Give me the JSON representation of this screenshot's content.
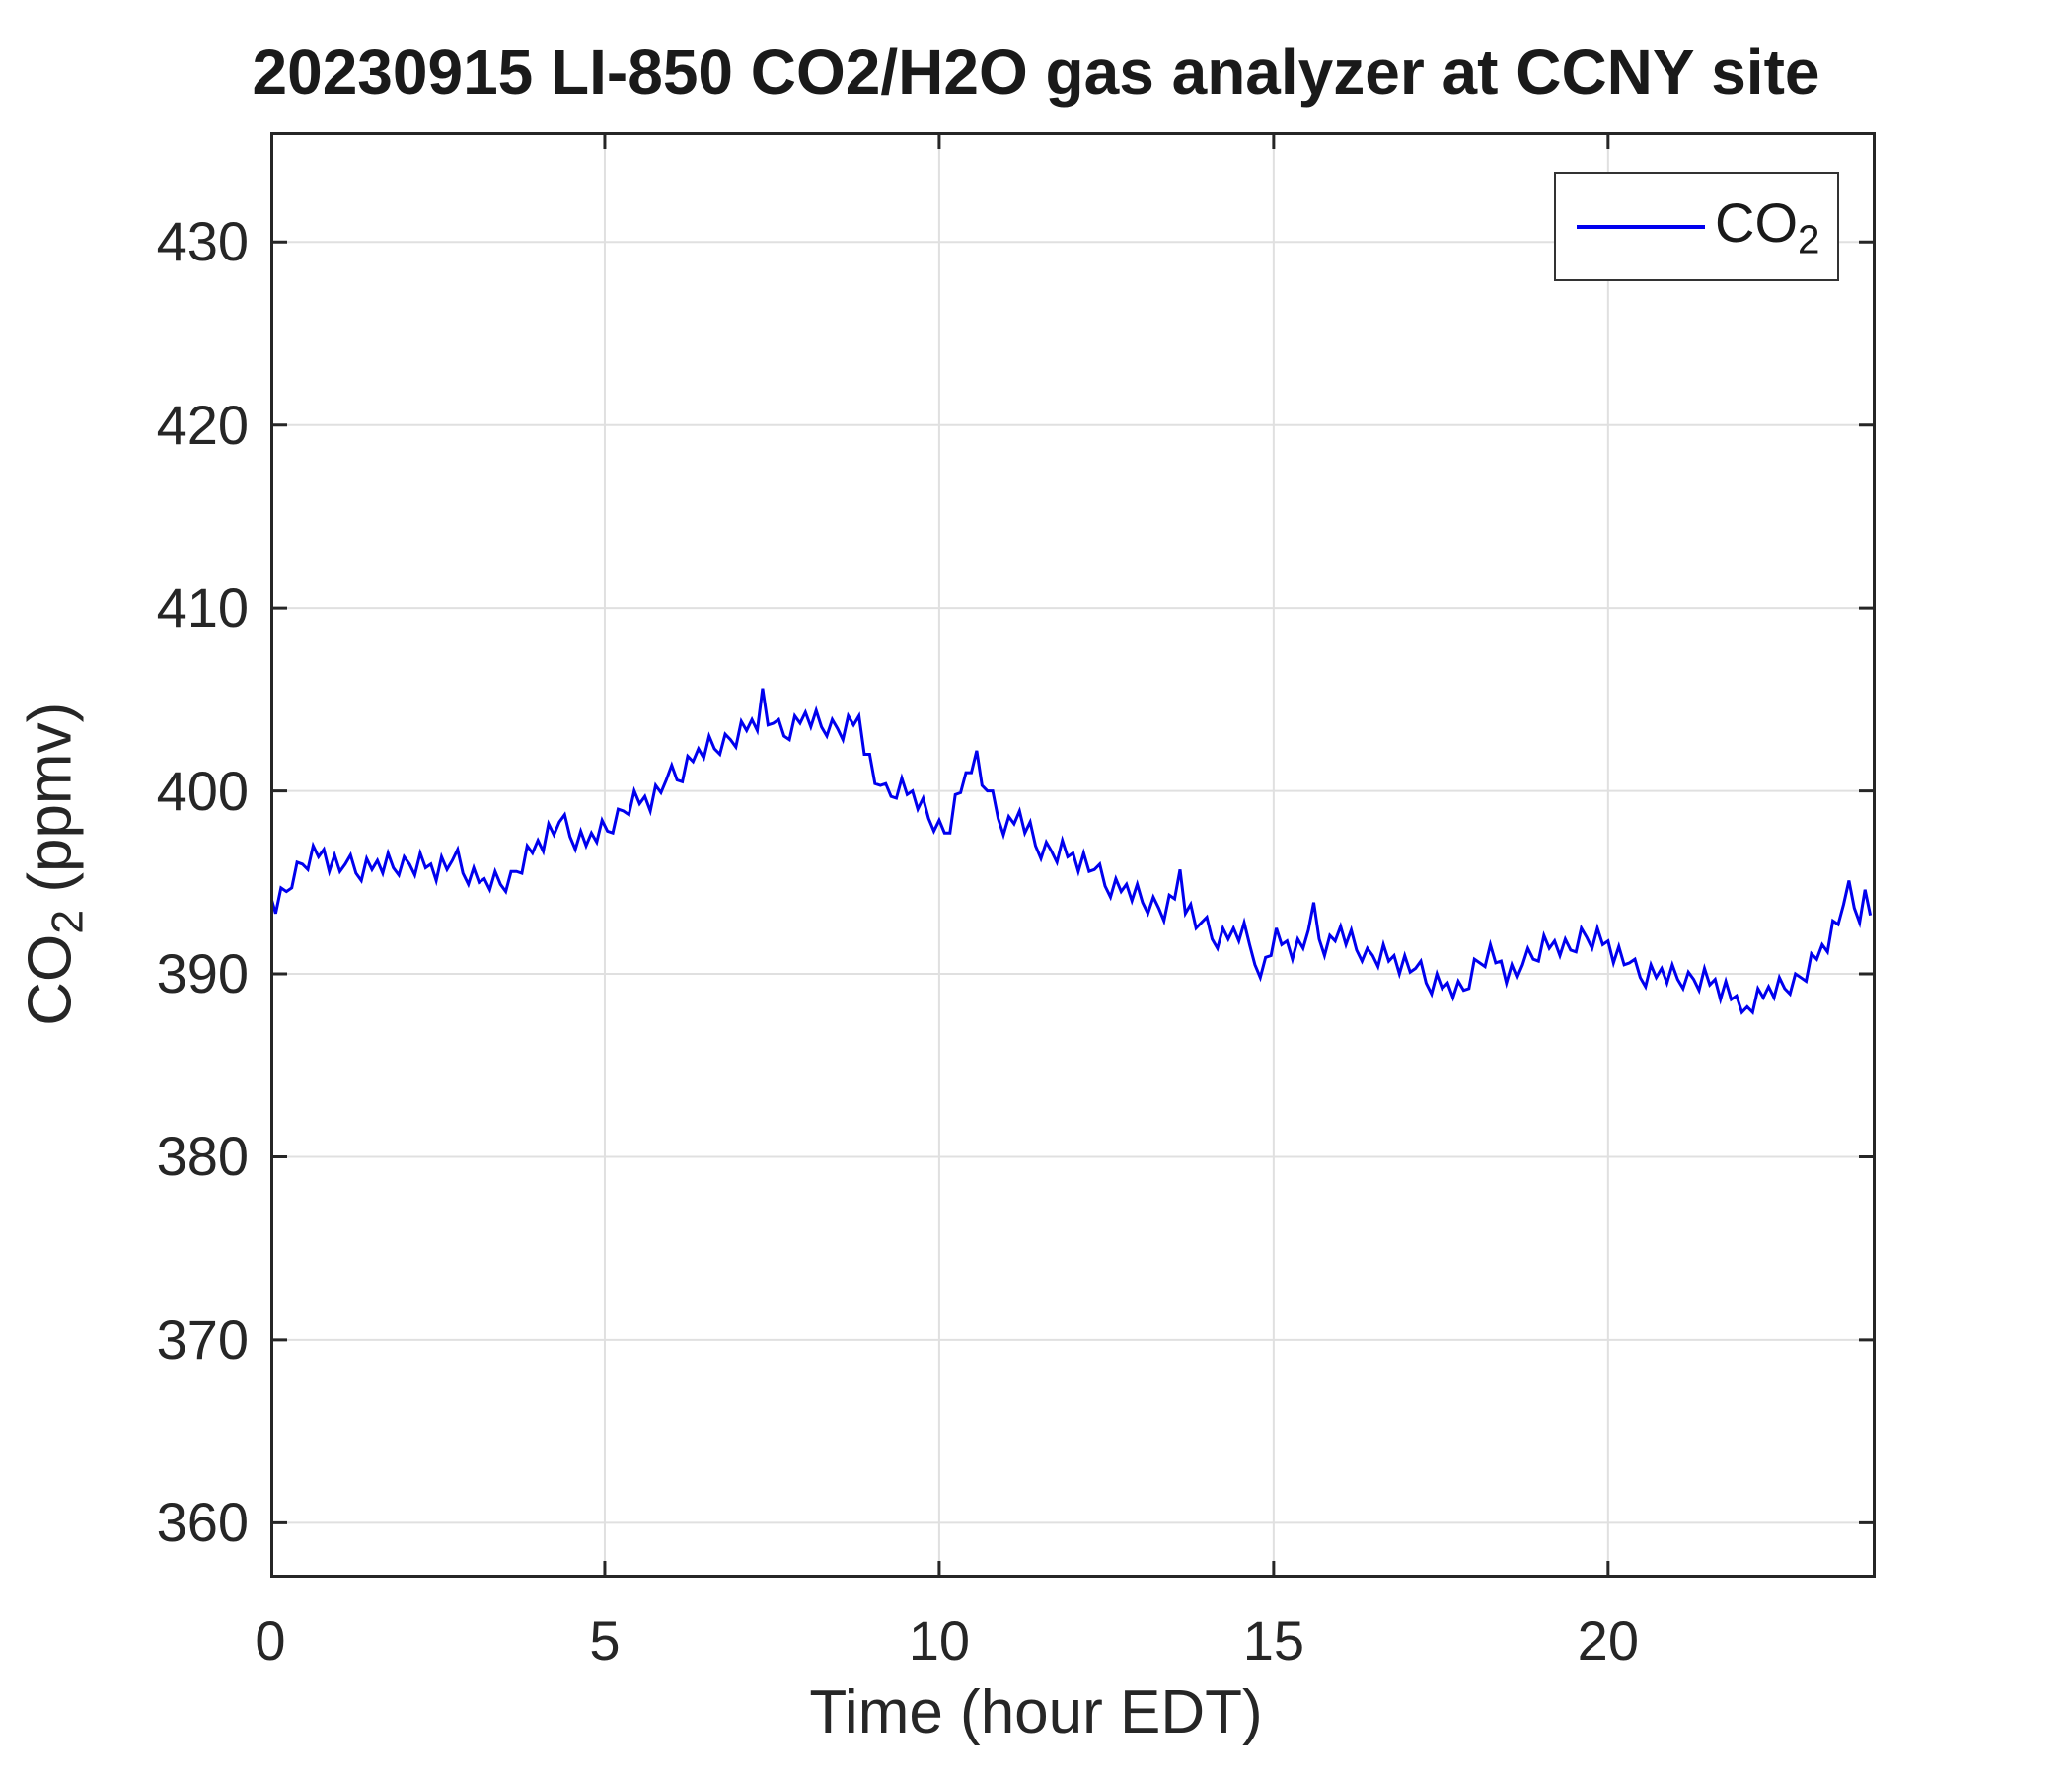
{
  "chart_data": {
    "type": "line",
    "title": "20230915 LI-850 CO2/H2O gas analyzer at CCNY site",
    "xlabel": "Time (hour EDT)",
    "ylabel": {
      "main": "CO",
      "sub": "2",
      "rest": " (ppmv)"
    },
    "legend": {
      "position": "top-right",
      "entry_main": "CO",
      "entry_sub": "2"
    },
    "xlim": [
      0,
      24
    ],
    "ylim": [
      357,
      436
    ],
    "xticks": [
      0,
      5,
      10,
      15,
      20
    ],
    "yticks": [
      360,
      370,
      380,
      390,
      400,
      410,
      420,
      430
    ],
    "grid": true,
    "colors": {
      "line": "#0000ee",
      "grid": "#e0e0e0",
      "axis": "#262626"
    },
    "series": [
      {
        "name": "CO2",
        "color": "#0000ee",
        "x_start": 0,
        "x_step": 0.08,
        "values": [
          394.3,
          393.3,
          394.7,
          394.5,
          394.7,
          396.1,
          396.0,
          395.7,
          397.0,
          396.4,
          396.8,
          395.6,
          396.5,
          395.6,
          396.0,
          396.5,
          395.5,
          395.1,
          396.3,
          395.7,
          396.2,
          395.5,
          396.6,
          395.8,
          395.4,
          396.4,
          396.0,
          395.4,
          396.6,
          395.8,
          396.0,
          395.1,
          396.4,
          395.7,
          396.2,
          396.8,
          395.5,
          394.9,
          395.8,
          395.0,
          395.2,
          394.6,
          395.6,
          394.9,
          394.5,
          395.6,
          395.6,
          395.5,
          397.0,
          396.6,
          397.3,
          396.7,
          398.2,
          397.6,
          398.3,
          398.7,
          397.5,
          396.8,
          397.8,
          397.0,
          397.7,
          397.2,
          398.4,
          397.8,
          397.7,
          399.0,
          398.9,
          398.7,
          400.0,
          399.3,
          399.7,
          398.9,
          400.3,
          399.9,
          400.6,
          401.4,
          400.6,
          400.5,
          401.9,
          401.6,
          402.3,
          401.8,
          403.0,
          402.3,
          402.0,
          403.1,
          402.8,
          402.4,
          403.8,
          403.3,
          403.9,
          403.3,
          405.6,
          403.6,
          403.7,
          403.9,
          403.0,
          402.8,
          404.1,
          403.7,
          404.3,
          403.5,
          404.4,
          403.5,
          403.0,
          403.9,
          403.4,
          402.8,
          404.1,
          403.6,
          404.1,
          402.0,
          402.0,
          400.4,
          400.3,
          400.4,
          399.7,
          399.6,
          400.7,
          399.8,
          400.0,
          399.0,
          399.6,
          398.5,
          397.8,
          398.4,
          397.7,
          397.7,
          399.8,
          399.9,
          401.0,
          401.0,
          402.2,
          400.3,
          400.0,
          400.0,
          398.5,
          397.6,
          398.6,
          398.2,
          398.9,
          397.7,
          398.3,
          397.0,
          396.3,
          397.2,
          396.7,
          396.1,
          397.3,
          396.4,
          396.6,
          395.6,
          396.6,
          395.6,
          395.7,
          396.0,
          394.8,
          394.2,
          395.2,
          394.5,
          394.9,
          394.0,
          394.9,
          393.9,
          393.3,
          394.2,
          393.6,
          392.9,
          394.3,
          394.1,
          395.7,
          393.3,
          393.8,
          392.5,
          392.8,
          393.1,
          391.9,
          391.4,
          392.5,
          391.9,
          392.5,
          391.8,
          392.8,
          391.6,
          390.5,
          389.8,
          390.9,
          391.0,
          392.5,
          391.6,
          391.8,
          390.8,
          391.9,
          391.4,
          392.4,
          393.9,
          391.9,
          391.0,
          392.1,
          391.8,
          392.6,
          391.6,
          392.4,
          391.3,
          390.7,
          391.4,
          391.0,
          390.4,
          391.6,
          390.7,
          391.0,
          390.0,
          391.0,
          390.1,
          390.3,
          390.7,
          389.5,
          388.9,
          390.0,
          389.2,
          389.5,
          388.7,
          389.6,
          389.1,
          389.2,
          390.8,
          390.6,
          390.4,
          391.6,
          390.6,
          390.7,
          389.5,
          390.5,
          389.8,
          390.5,
          391.4,
          390.8,
          390.7,
          392.1,
          391.4,
          391.8,
          391.0,
          391.9,
          391.3,
          391.2,
          392.5,
          392.0,
          391.4,
          392.5,
          391.6,
          391.8,
          390.6,
          391.5,
          390.5,
          390.6,
          390.8,
          389.8,
          389.3,
          390.5,
          389.8,
          390.3,
          389.5,
          390.5,
          389.7,
          389.2,
          390.1,
          389.7,
          389.1,
          390.3,
          389.4,
          389.7,
          388.6,
          389.6,
          388.6,
          388.8,
          387.9,
          388.2,
          387.9,
          389.2,
          388.7,
          389.3,
          388.7,
          389.8,
          389.2,
          388.9,
          390.0,
          389.8,
          389.6,
          391.1,
          390.8,
          391.6,
          391.2,
          392.9,
          392.7,
          393.8,
          395.1,
          393.6,
          392.8,
          394.6,
          393.2
        ]
      }
    ]
  }
}
